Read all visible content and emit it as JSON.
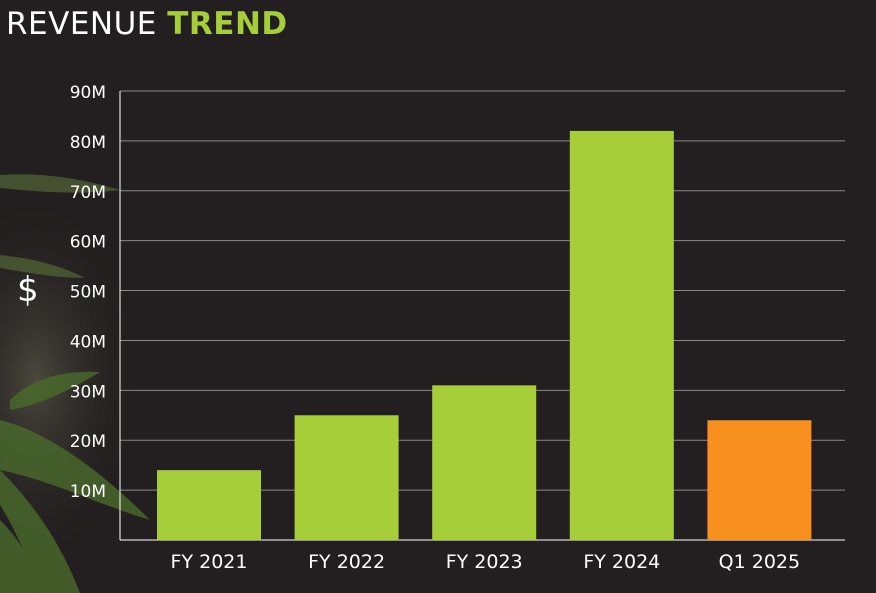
{
  "title_main": "REVENUE",
  "title_accent": "TREND",
  "y_unit": "$",
  "colors": {
    "background": "#231f20",
    "bar": "#a6ce39",
    "bar_highlight": "#f7901e",
    "grid": "#8a8788",
    "text": "#ffffff",
    "title_accent": "#a6ce39"
  },
  "chart_data": {
    "type": "bar",
    "categories": [
      "FY 2021",
      "FY 2022",
      "FY 2023",
      "FY 2024",
      "Q1 2025"
    ],
    "values": [
      14,
      25,
      31,
      82,
      24
    ],
    "highlight_index": 4,
    "ylim": [
      0,
      90
    ],
    "yticks": [
      10,
      20,
      30,
      40,
      50,
      60,
      70,
      80,
      90
    ],
    "ytick_labels": [
      "10M",
      "20M",
      "30M",
      "40M",
      "50M",
      "60M",
      "70M",
      "80M",
      "90M"
    ],
    "ylabel": "$",
    "xlabel": "",
    "grid": true,
    "legend": "none"
  }
}
